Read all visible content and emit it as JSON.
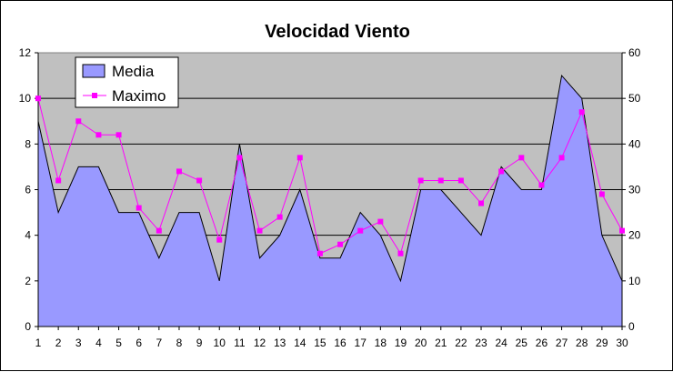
{
  "chart_data": {
    "type": "area",
    "title": "Velocidad Viento",
    "categories": [
      "1",
      "2",
      "3",
      "4",
      "5",
      "6",
      "7",
      "8",
      "9",
      "10",
      "11",
      "12",
      "13",
      "14",
      "15",
      "16",
      "17",
      "18",
      "19",
      "20",
      "21",
      "22",
      "23",
      "24",
      "25",
      "26",
      "27",
      "28",
      "29",
      "30"
    ],
    "series": [
      {
        "name": "Media",
        "type": "area",
        "axis": "left",
        "color": "#9999ff",
        "values": [
          9,
          5,
          7,
          7,
          5,
          5,
          3,
          5,
          5,
          2,
          8,
          3,
          4,
          6,
          3,
          3,
          5,
          4,
          2,
          6,
          6,
          5,
          4,
          7,
          6,
          6,
          11,
          10,
          4,
          2
        ]
      },
      {
        "name": "Maximo",
        "type": "line",
        "axis": "right",
        "color": "#ff00ff",
        "values": [
          50,
          32,
          45,
          42,
          42,
          26,
          21,
          34,
          32,
          19,
          37,
          21,
          24,
          37,
          16,
          18,
          21,
          23,
          16,
          32,
          32,
          32,
          27,
          34,
          37,
          31,
          37,
          47,
          29,
          21
        ]
      }
    ],
    "yleft": {
      "min": 0,
      "max": 12,
      "ticks": [
        "0",
        "2",
        "4",
        "6",
        "8",
        "10",
        "12"
      ]
    },
    "yright": {
      "min": 0,
      "max": 60,
      "ticks": [
        "0",
        "10",
        "20",
        "30",
        "40",
        "50",
        "60"
      ]
    },
    "plot_background": "#c0c0c0",
    "grid": true,
    "legend_position": "top-left"
  }
}
